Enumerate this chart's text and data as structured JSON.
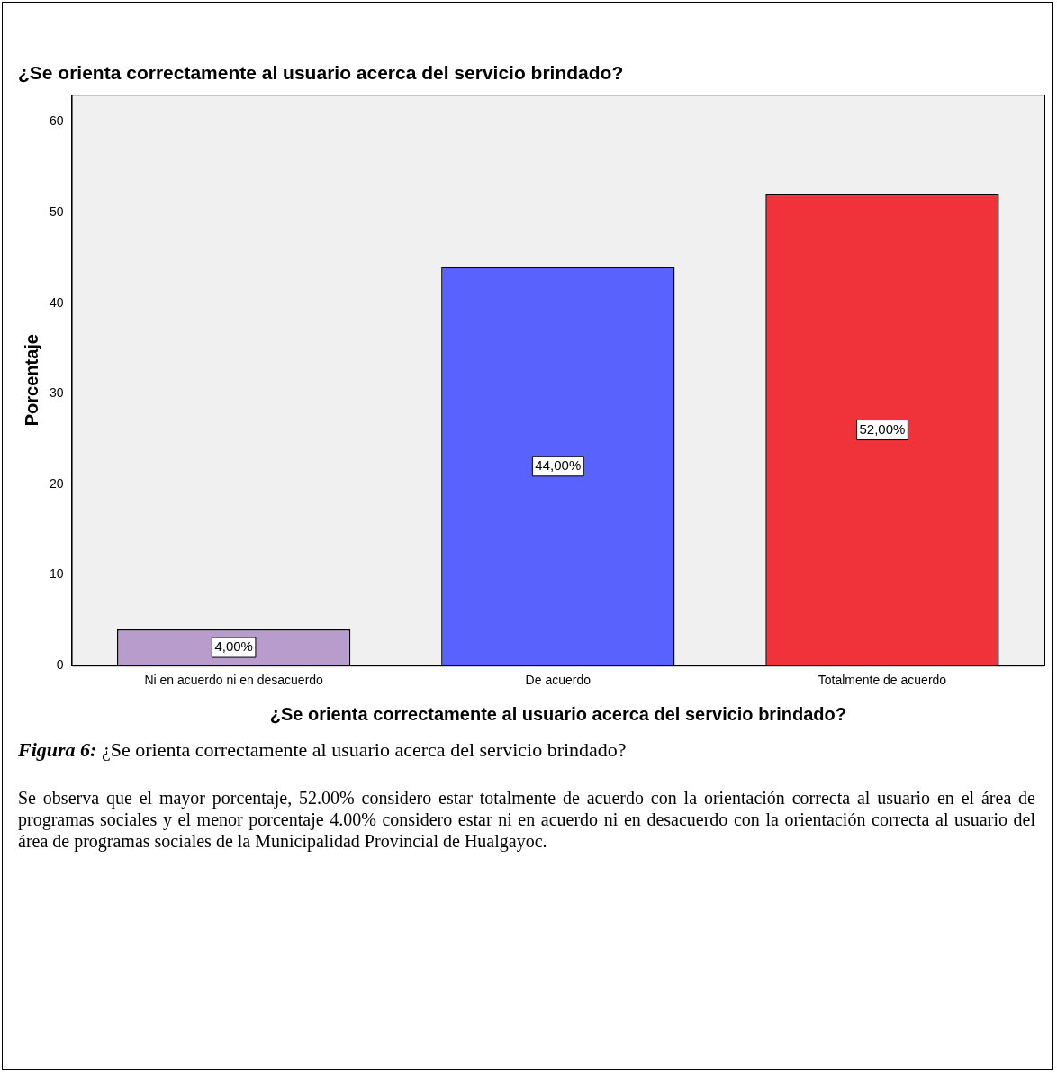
{
  "chart_data": {
    "type": "bar",
    "title": "¿Se orienta correctamente al usuario acerca del servicio brindado?",
    "xlabel": "¿Se orienta correctamente al usuario acerca del servicio brindado?",
    "ylabel": "Porcentaje",
    "categories": [
      "Ni en acuerdo ni en desacuerdo",
      "De acuerdo",
      "Totalmente de acuerdo"
    ],
    "values": [
      4,
      44,
      52
    ],
    "colors": [
      "#b89ccc",
      "#5a62fe",
      "#f0323a"
    ],
    "value_labels": [
      "4,00%",
      "44,00%",
      "52,00%"
    ],
    "ylim": [
      0,
      63
    ],
    "yticks": [
      0,
      10,
      20,
      30,
      40,
      50,
      60
    ],
    "grid": false,
    "legend": false,
    "annotations": [
      "Figura 6: ¿Se orienta correctamente al usuario acerca del servicio brindado?",
      "Se observa que el mayor porcentaje, 52.00% considero estar totalmente de acuerdo con la orientación correcta al usuario en el área de programas sociales y el menor porcentaje 4.00% considero estar ni en acuerdo ni en desacuerdo con la orientación correcta al usuario del área de programas sociales de la Municipalidad Provincial de Hualgayoc."
    ]
  }
}
